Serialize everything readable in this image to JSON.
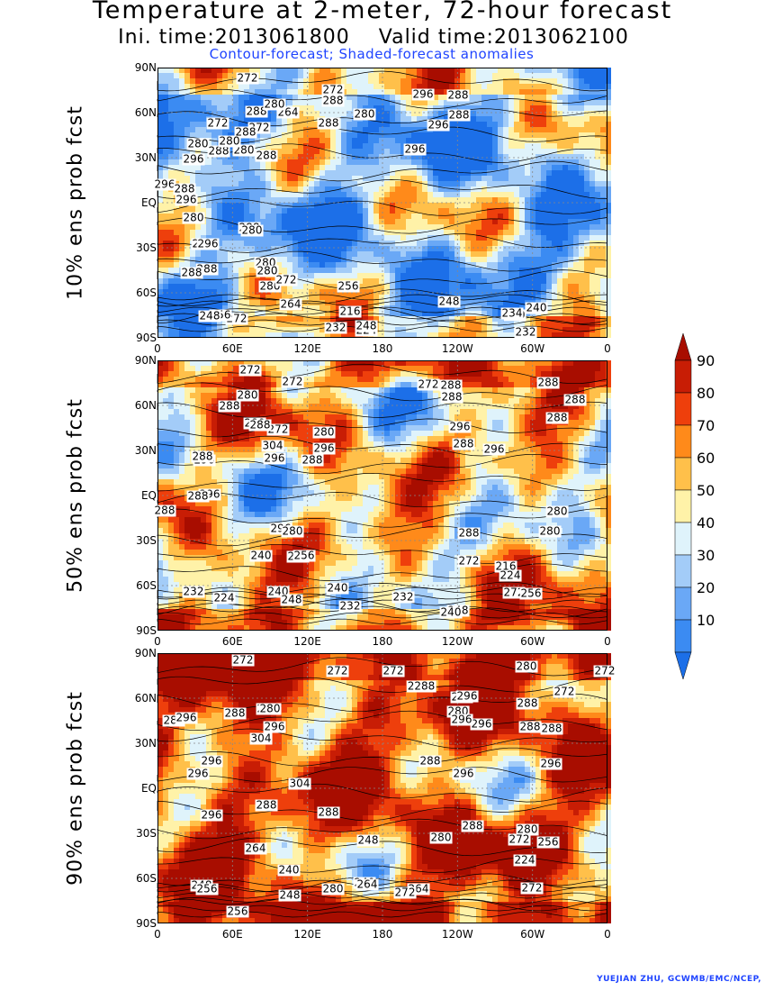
{
  "title": {
    "line1": "Temperature at 2-meter, 72-hour forecast",
    "line2": "Ini. time:2013061800    Valid time:2013062100",
    "line3": "Contour-forecast; Shaded-forecast anomalies"
  },
  "axes": {
    "lat_labels": [
      "90N",
      "60N",
      "30N",
      "EQ",
      "30S",
      "60S",
      "90S"
    ],
    "lon_labels": [
      "0",
      "60E",
      "120E",
      "180",
      "120W",
      "60W",
      "0"
    ]
  },
  "panels": [
    {
      "label": "10% ens prob fcst",
      "contour_labels": [
        "272",
        "272",
        "288",
        "280",
        "288",
        "288",
        "272",
        "272",
        "264",
        "280",
        "288",
        "280",
        "280",
        "288",
        "280",
        "296",
        "288",
        "288",
        "296",
        "296",
        "296",
        "288",
        "296",
        "288",
        "296",
        "280",
        "296",
        "296",
        "288",
        "288",
        "280",
        "288",
        "280",
        "280",
        "280",
        "272",
        "256",
        "264",
        "272",
        "256",
        "248",
        "232",
        "216",
        "224",
        "248",
        "240",
        "248",
        "232",
        "240",
        "234"
      ]
    },
    {
      "label": "50% ens prob fcst",
      "contour_labels": [
        "272",
        "272",
        "280",
        "288",
        "280",
        "272",
        "288",
        "272",
        "288",
        "288",
        "288",
        "288",
        "288",
        "280",
        "296",
        "288",
        "304",
        "296",
        "296",
        "288",
        "296",
        "288",
        "296",
        "296",
        "288",
        "288",
        "296",
        "280",
        "288",
        "280",
        "280",
        "272",
        "264",
        "256",
        "240",
        "216",
        "224",
        "272",
        "256",
        "224",
        "232",
        "240",
        "248",
        "240",
        "232",
        "232",
        "248",
        "240"
      ]
    },
    {
      "label": "90% ens prob fcst",
      "contour_labels": [
        "272",
        "272",
        "272",
        "280",
        "272",
        "272",
        "280",
        "2288",
        "296",
        "296",
        "288",
        "296",
        "288",
        "280",
        "288",
        "296",
        "280",
        "296",
        "288",
        "304",
        "288",
        "296",
        "296",
        "296",
        "296",
        "304",
        "288",
        "296",
        "296",
        "288",
        "288",
        "288",
        "280",
        "280",
        "272",
        "256",
        "264",
        "248",
        "224",
        "240",
        "264",
        "272",
        "248",
        "256",
        "256",
        "248",
        "240",
        "280",
        "264",
        "272"
      ]
    }
  ],
  "colorbar": {
    "levels": [
      "10",
      "20",
      "30",
      "40",
      "50",
      "60",
      "70",
      "80",
      "90"
    ],
    "colors": [
      "#1c6fe8",
      "#3b8bf2",
      "#6aa8f6",
      "#a3ccf8",
      "#dff3fb",
      "#fff2a8",
      "#ffc04a",
      "#ff8a1a",
      "#ee3f0c",
      "#c81d05",
      "#a80d00"
    ]
  },
  "credit": "YUEJIAN ZHU, GCWMB/EMC/NCEP,"
}
